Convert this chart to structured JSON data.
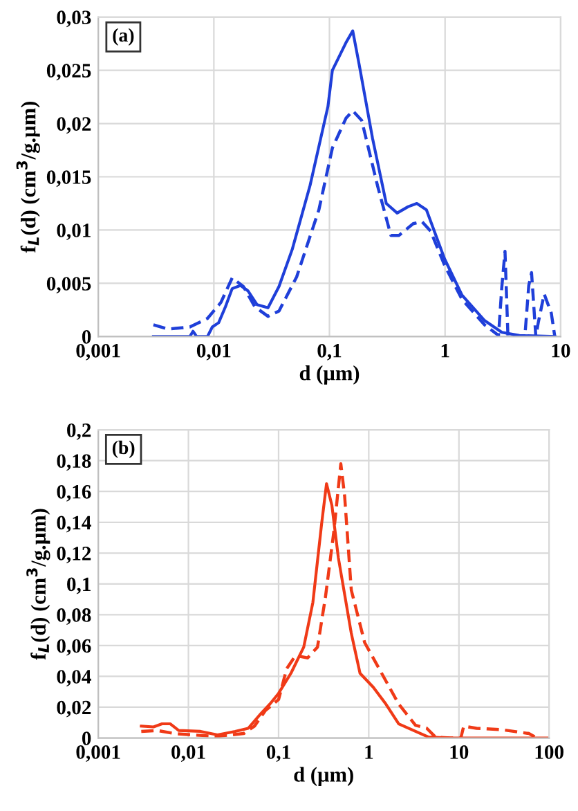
{
  "chart_data": [
    {
      "type": "line",
      "xlabel": "d (µm)",
      "ylabel": "f$_{L}$(d) (cm$^{3}$/g.µm)",
      "annotations": [
        "(a)"
      ],
      "log": "x",
      "grid": true,
      "xlim": [
        0.001,
        10
      ],
      "xticks": [
        {
          "value": 0.001,
          "label": "0,001"
        },
        {
          "value": 0.01,
          "label": "0,01"
        },
        {
          "value": 0.1,
          "label": "0,1"
        },
        {
          "value": 1,
          "label": "1"
        },
        {
          "value": 10,
          "label": "10"
        }
      ],
      "ylim": [
        0,
        0.03
      ],
      "yticks": [
        0,
        {
          "value": 0.005,
          "label": "0,005"
        },
        {
          "value": 0.01,
          "label": "0,01"
        },
        {
          "value": 0.015,
          "label": "0,015"
        },
        {
          "value": 0.02,
          "label": "0,02"
        },
        {
          "value": 0.025,
          "label": "0,025"
        },
        {
          "value": 0.03,
          "label": "0,03"
        }
      ],
      "series": [
        {
          "color": "#1f3fd9",
          "line_style": "solid",
          "x": [
            0.003,
            0.0062,
            0.0066,
            0.0071,
            0.0088,
            0.0097,
            0.011,
            0.0126,
            0.0144,
            0.017,
            0.0197,
            0.0236,
            0.0294,
            0.0366,
            0.0477,
            0.068,
            0.097,
            0.106,
            0.139,
            0.159,
            0.181,
            0.236,
            0.31,
            0.385,
            0.48,
            0.57,
            0.69,
            0.99,
            1.4,
            2.2,
            3.1,
            4.4,
            8.9
          ],
          "values": [
            0,
            0,
            0.0005,
            0,
            0,
            0.0009,
            0.0013,
            0.0028,
            0.0045,
            0.0048,
            0.0043,
            0.003,
            0.0027,
            0.0047,
            0.0082,
            0.0142,
            0.0216,
            0.025,
            0.0276,
            0.0287,
            0.0255,
            0.0186,
            0.0125,
            0.0116,
            0.0122,
            0.0125,
            0.0119,
            0.0073,
            0.0039,
            0.0015,
            0.0004,
            0.0001,
            0
          ]
        },
        {
          "color": "#1f3fd9",
          "line_style": "dashed",
          "x": [
            0.003,
            0.004,
            0.0062,
            0.0088,
            0.0115,
            0.0144,
            0.018,
            0.0226,
            0.0294,
            0.0366,
            0.052,
            0.081,
            0.106,
            0.139,
            0.159,
            0.19,
            0.26,
            0.34,
            0.4,
            0.53,
            0.63,
            0.75,
            0.99,
            1.4,
            2.2,
            2.9,
            3.1,
            3.3,
            3.5,
            4.9,
            5.3,
            5.6,
            6.1,
            6.4,
            7.2,
            8.3,
            8.9
          ],
          "values": [
            0.0011,
            0.0007,
            0.0009,
            0.0017,
            0.0032,
            0.0055,
            0.0047,
            0.0028,
            0.0019,
            0.0024,
            0.0056,
            0.0119,
            0.0177,
            0.0205,
            0.0212,
            0.0203,
            0.0142,
            0.0095,
            0.0095,
            0.0106,
            0.0108,
            0.0099,
            0.0067,
            0.0035,
            0.0011,
            0.0001,
            0.0047,
            0.008,
            0,
            0,
            0.0048,
            0.006,
            0,
            0.0013,
            0.004,
            0.0022,
            0
          ]
        }
      ]
    },
    {
      "type": "line",
      "xlabel": "d (µm)",
      "ylabel": "f$_{L}$(d) (cm$^{3}$/g.µm)",
      "annotations": [
        "(b)"
      ],
      "log": "x",
      "grid": true,
      "xlim": [
        0.001,
        100
      ],
      "xticks": [
        {
          "value": 0.001,
          "label": "0,001"
        },
        {
          "value": 0.01,
          "label": "0,01"
        },
        {
          "value": 0.1,
          "label": "0,1"
        },
        {
          "value": 1,
          "label": "1"
        },
        {
          "value": 10,
          "label": "10"
        },
        {
          "value": 100,
          "label": "100"
        }
      ],
      "ylim": [
        0,
        0.2
      ],
      "yticks": [
        0,
        {
          "value": 0.02,
          "label": "0,02"
        },
        {
          "value": 0.04,
          "label": "0,04"
        },
        {
          "value": 0.06,
          "label": "0,06"
        },
        {
          "value": 0.08,
          "label": "0,08"
        },
        {
          "value": 0.1,
          "label": "0,1"
        },
        {
          "value": 0.12,
          "label": "0,12"
        },
        {
          "value": 0.14,
          "label": "0,14"
        },
        {
          "value": 0.16,
          "label": "0,16"
        },
        {
          "value": 0.18,
          "label": "0,18"
        },
        {
          "value": 0.2,
          "label": "0,2"
        }
      ],
      "series": [
        {
          "color": "#f03a17",
          "line_style": "solid",
          "x": [
            0.003,
            0.0041,
            0.0051,
            0.0063,
            0.0078,
            0.0136,
            0.021,
            0.033,
            0.046,
            0.064,
            0.08,
            0.1,
            0.137,
            0.19,
            0.24,
            0.3,
            0.34,
            0.39,
            0.46,
            0.64,
            0.8,
            1.12,
            1.55,
            2.15,
            3.3,
            4.6,
            8,
            100
          ],
          "values": [
            0.0077,
            0.0072,
            0.0092,
            0.0092,
            0.0049,
            0.0043,
            0.002,
            0.0043,
            0.0063,
            0.016,
            0.022,
            0.029,
            0.042,
            0.059,
            0.088,
            0.139,
            0.165,
            0.151,
            0.117,
            0.068,
            0.042,
            0.033,
            0.022,
            0.0092,
            0.0043,
            0.0006,
            0,
            0
          ]
        },
        {
          "color": "#f03a17",
          "line_style": "dashed",
          "x": [
            0.003,
            0.0045,
            0.007,
            0.011,
            0.021,
            0.041,
            0.054,
            0.071,
            0.1,
            0.123,
            0.154,
            0.21,
            0.27,
            0.33,
            0.41,
            0.49,
            0.54,
            0.64,
            0.9,
            1.39,
            2.15,
            3.3,
            4.4,
            5.5,
            8,
            10.5,
            11.3,
            15.7,
            30,
            60,
            70
          ],
          "values": [
            0.0043,
            0.0049,
            0.0029,
            0.002,
            0.0011,
            0.0029,
            0.0077,
            0.0177,
            0.025,
            0.045,
            0.0535,
            0.052,
            0.059,
            0.091,
            0.134,
            0.178,
            0.157,
            0.096,
            0.062,
            0.042,
            0.022,
            0.0083,
            0.0063,
            0.0006,
            0,
            0,
            0.0077,
            0.0063,
            0.0054,
            0.0029,
            0.0006
          ]
        }
      ]
    }
  ]
}
